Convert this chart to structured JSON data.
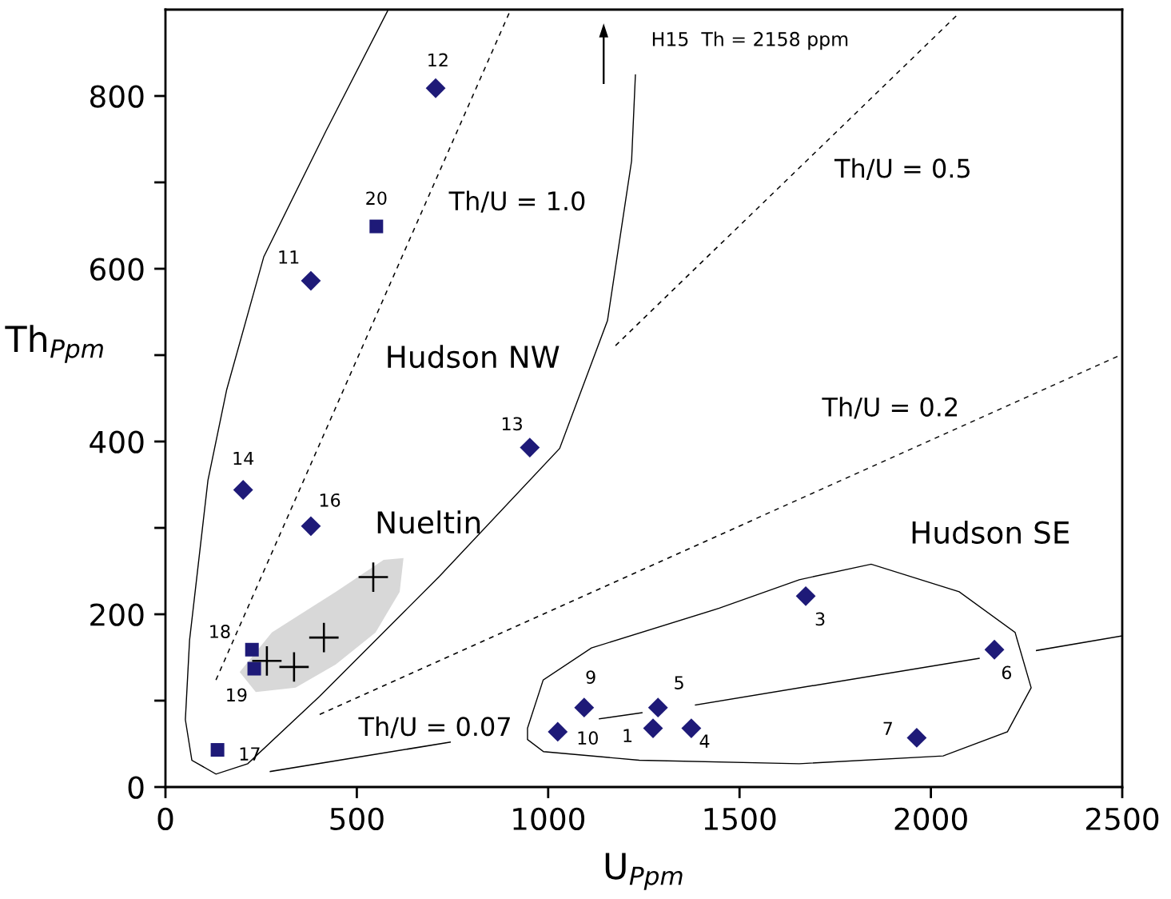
{
  "chart_data": {
    "type": "scatter",
    "xlabel": "U$_{Ppm}$",
    "ylabel": "Th$_{Ppm}$",
    "xlim": [
      0,
      2500
    ],
    "xticks": [
      0,
      500,
      1000,
      1500,
      2000,
      2500
    ],
    "ylim": [
      0,
      900
    ],
    "yticks": [
      0,
      {
        "value": 100,
        "label": null
      },
      200,
      {
        "value": 300,
        "label": null
      },
      400,
      {
        "value": 500,
        "label": null
      },
      600,
      {
        "value": 700,
        "label": null
      },
      800
    ],
    "grid": false,
    "legend": false,
    "series": [
      {
        "marker": "diamond",
        "color": "#1e1a78",
        "x": [
          706,
          380,
          952,
          203,
          380,
          1673,
          2166,
          1094,
          1287,
          1025,
          1274,
          1374,
          1963
        ],
        "values": [
          809,
          586,
          393,
          344,
          302,
          221,
          159,
          92,
          92,
          64,
          68,
          68,
          57
        ]
      },
      {
        "marker": "square",
        "color": "#1e1a78",
        "x": [
          551,
          226,
          232,
          136
        ],
        "values": [
          649,
          159,
          137,
          43
        ]
      },
      {
        "marker": "cross",
        "color": "#000000",
        "x": [
          543,
          414,
          265,
          336
        ],
        "values": [
          243,
          173,
          146,
          139
        ]
      },
      {
        "type": "line",
        "line_style": "dashed",
        "color": "#000000",
        "x": [
          132,
          898
        ],
        "values": [
          124,
          896
        ]
      },
      {
        "type": "line",
        "line_style": "dashed",
        "color": "#000000",
        "x": [
          1176,
          2074
        ],
        "values": [
          511,
          896
        ]
      },
      {
        "type": "line",
        "line_style": "dashed",
        "color": "#000000",
        "x": [
          403,
          2500
        ],
        "values": [
          84,
          501
        ]
      },
      {
        "type": "line",
        "line_style": "solid",
        "color": "#000000",
        "x": [
          274,
          744
        ],
        "values": [
          18,
          52
        ]
      },
      {
        "type": "line",
        "line_style": "solid",
        "color": "#000000",
        "x": [
          1134,
          1245
        ],
        "values": [
          79,
          86
        ]
      },
      {
        "type": "line",
        "line_style": "solid",
        "color": "#000000",
        "x": [
          1385,
          2126
        ],
        "values": [
          95,
          149
        ]
      },
      {
        "type": "line",
        "line_style": "solid",
        "color": "#000000",
        "x": [
          2276,
          2500
        ],
        "values": [
          158,
          175
        ]
      }
    ],
    "annotations": [
      {
        "text": "12",
        "x": 706,
        "y": 809
      },
      {
        "text": "20",
        "x": 551,
        "y": 649
      },
      {
        "text": "11",
        "x": 380,
        "y": 586
      },
      {
        "text": "13",
        "x": 952,
        "y": 393
      },
      {
        "text": "14",
        "x": 203,
        "y": 344
      },
      {
        "text": "16",
        "x": 380,
        "y": 302
      },
      {
        "text": "18",
        "x": 226,
        "y": 159
      },
      {
        "text": "19",
        "x": 232,
        "y": 137
      },
      {
        "text": "17",
        "x": 136,
        "y": 43
      },
      {
        "text": "3",
        "x": 1673,
        "y": 221
      },
      {
        "text": "6",
        "x": 2166,
        "y": 159
      },
      {
        "text": "9",
        "x": 1094,
        "y": 92
      },
      {
        "text": "5",
        "x": 1287,
        "y": 92
      },
      {
        "text": "10",
        "x": 1025,
        "y": 64
      },
      {
        "text": "1",
        "x": 1274,
        "y": 68
      },
      {
        "text": "4",
        "x": 1374,
        "y": 68
      },
      {
        "text": "7",
        "x": 1963,
        "y": 57
      },
      "Th/U = 1.0",
      "Th/U = 0.5",
      "Th/U = 0.2",
      "Th/U = 0.07",
      "Hudson NW",
      "Nueltin",
      "Hudson SE",
      "H15  Th = 2158 ppm"
    ]
  }
}
